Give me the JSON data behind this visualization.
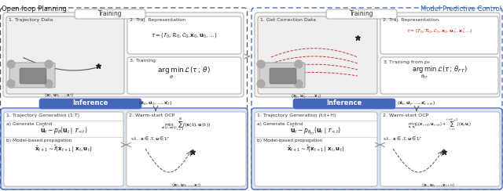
{
  "title_left": "Open-loop Planning",
  "title_right": "Model Predictive Control",
  "title_left_color": "#222222",
  "title_right_color": "#3366bb",
  "bg_color": "#ffffff",
  "training_label": "Training",
  "inference_label": "Inference",
  "inference_bar_color": "#4466bb",
  "left_outer_dash_color": "#888888",
  "right_outer_dash_color": "#3366bb",
  "left_training": {
    "section1_title": "1. Trajectory Data",
    "section2_title": "2. Traj. Representation",
    "section2_formula": "$\\tau = (\\mathcal{T}_0, \\mathcal{R}_0, \\mathcal{C}_0, \\mathbf{x}_0, \\mathbf{u}_0, \\ldots)$",
    "section3_title": "3. Training",
    "section3_formula": "$\\underset{\\theta}{\\arg\\min}\\,\\mathcal{L}(\\tau\\,;\\,\\theta)$",
    "drone_label": "$(\\mathbf{x}_0, \\mathbf{u}_0, \\ldots, \\mathbf{x}_T)$"
  },
  "right_training": {
    "section1_title": "1. Get Correction Data",
    "section2_title": "2. Traj. Representation",
    "section2_formula_black": "$\\tau = (\\mathcal{T}_0, \\mathcal{R}_0, \\mathcal{C}_0, \\mathbf{x}_0,$",
    "section2_formula_red": "$\\mathbf{u}_0^*, \\mathbf{x}_1^*$",
    "section2_formula_black2": "$\\ldots)$",
    "section3_title": "3. Training from $p_\\theta$",
    "section3_formula": "$\\underset{\\theta_{FT}}{\\arg\\min}\\,\\mathcal{L}(\\tau\\,;\\,\\theta_{FT})$",
    "drone_label": "$(\\mathbf{x}_0, \\mathbf{u}_0^*, \\ldots, \\mathbf{x}_T)$"
  },
  "left_inference": {
    "output_label": "$(\\hat{\\mathbf{x}}_0, \\hat{\\mathbf{u}}_0, \\ldots, \\hat{\\mathbf{x}}_T)$",
    "sec1_title": "1. Trajectory Generation (1:T)",
    "sec1a": "a) Generate Control",
    "sec1a_formula": "$\\hat{\\mathbf{u}}_t \\sim p_\\theta(\\mathbf{u}_t \\mid \\mathcal{T}_{<t})$",
    "sec1b": "b) Model-based propagation",
    "sec1b_formula": "$\\hat{\\mathbf{x}}_{t+1} \\sim \\hat{f}(\\mathbf{x}_{t+1} \\mid \\mathbf{x}_t, \\mathbf{u}_t)$",
    "sec2_title": "2. Warm-start OCP",
    "sec2_formula_obj": "$\\underset{\\mathbf{x}(t_i),\\mathbf{u}(t_i)}{\\min}\\sum_{i=1}^{N} J(\\mathbf{x}(t_i),\\mathbf{u}(t_i))$",
    "sec2_formula_con": "s.t.  $\\mathbf{x} \\in \\mathcal{X}, \\mathbf{u} \\in \\mathcal{U}$",
    "sec2_result": "$(\\mathbf{x}_0, \\mathbf{u}_0, \\ldots, \\mathbf{x}_T)$"
  },
  "right_inference": {
    "output_label": "$(\\hat{\\mathbf{x}}_t, \\hat{\\mathbf{u}}_t, \\ldots, \\hat{\\mathbf{x}}_{t+H})$",
    "sec1_title": "1. Trajectory Generation (t:t+H)",
    "sec1a": "a) Generate Control",
    "sec1a_formula": "$\\hat{\\mathbf{u}}_t \\sim p_{\\theta_{FT}}(\\mathbf{u}_t \\mid \\mathcal{T}_{<t})$",
    "sec1b": "b) Model-based propagation",
    "sec1b_formula": "$\\hat{\\mathbf{x}}_{t+1} \\sim \\hat{f}(\\mathbf{x}_{t+1} \\mid \\mathbf{x}_t, \\mathbf{u}_t)$",
    "sec2_title": "2. Warm-start OCP",
    "sec2_formula_obj": "$\\underset{\\mathbf{x}_t,\\mathbf{u}_t}{\\min}\\,J_t(\\mathbf{x}_{t+H},\\mathbf{u}_{t+H})+\\sum_{i=t}^{t+H-1}J(\\mathbf{x}_i,\\mathbf{u}_i)$",
    "sec2_formula_con": "s.t.  $\\mathbf{x} \\in \\mathcal{X}, \\mathbf{u} \\in \\mathcal{U}$",
    "sec2_result": "$(\\mathbf{x}_t, \\mathbf{u}_t, \\ldots, \\mathbf{x}_{t+H})$"
  }
}
